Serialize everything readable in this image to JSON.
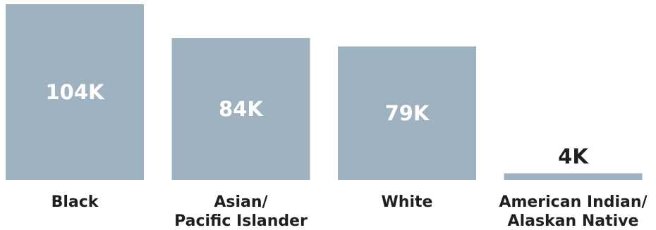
{
  "chart_data": {
    "type": "bar",
    "categories": [
      [
        "Black"
      ],
      [
        "Asian/",
        "Pacific Islander"
      ],
      [
        "White"
      ],
      [
        "American Indian/",
        "Alaskan Native"
      ]
    ],
    "values": [
      104,
      84,
      79,
      4
    ],
    "value_labels": [
      "104K",
      "84K",
      "79K",
      "4K"
    ],
    "unit": "K",
    "ylim": [
      0,
      104
    ],
    "title": "",
    "xlabel": "",
    "ylabel": "",
    "grid": false,
    "legend": "none"
  },
  "colors": {
    "bar": "#9eb3bf",
    "label_inside": "#ffffff",
    "label_outside": "#1f1f1f",
    "category_text": "#1f1f1f"
  }
}
